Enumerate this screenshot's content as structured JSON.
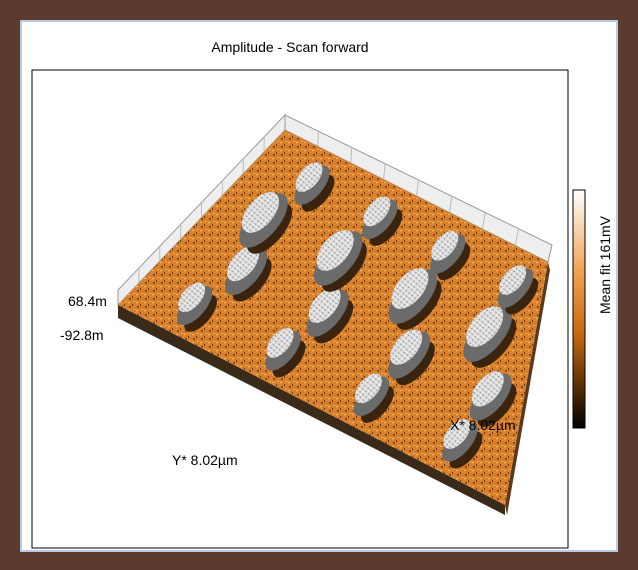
{
  "title": "Amplitude - Scan forward",
  "z_axis": {
    "max_label": "68.4m",
    "min_label": "-92.8m"
  },
  "y_axis_label": "Y* 8.02µm",
  "x_axis_label": "X* 8.02µm",
  "colorbar_label": "Mean fit 161mV"
}
